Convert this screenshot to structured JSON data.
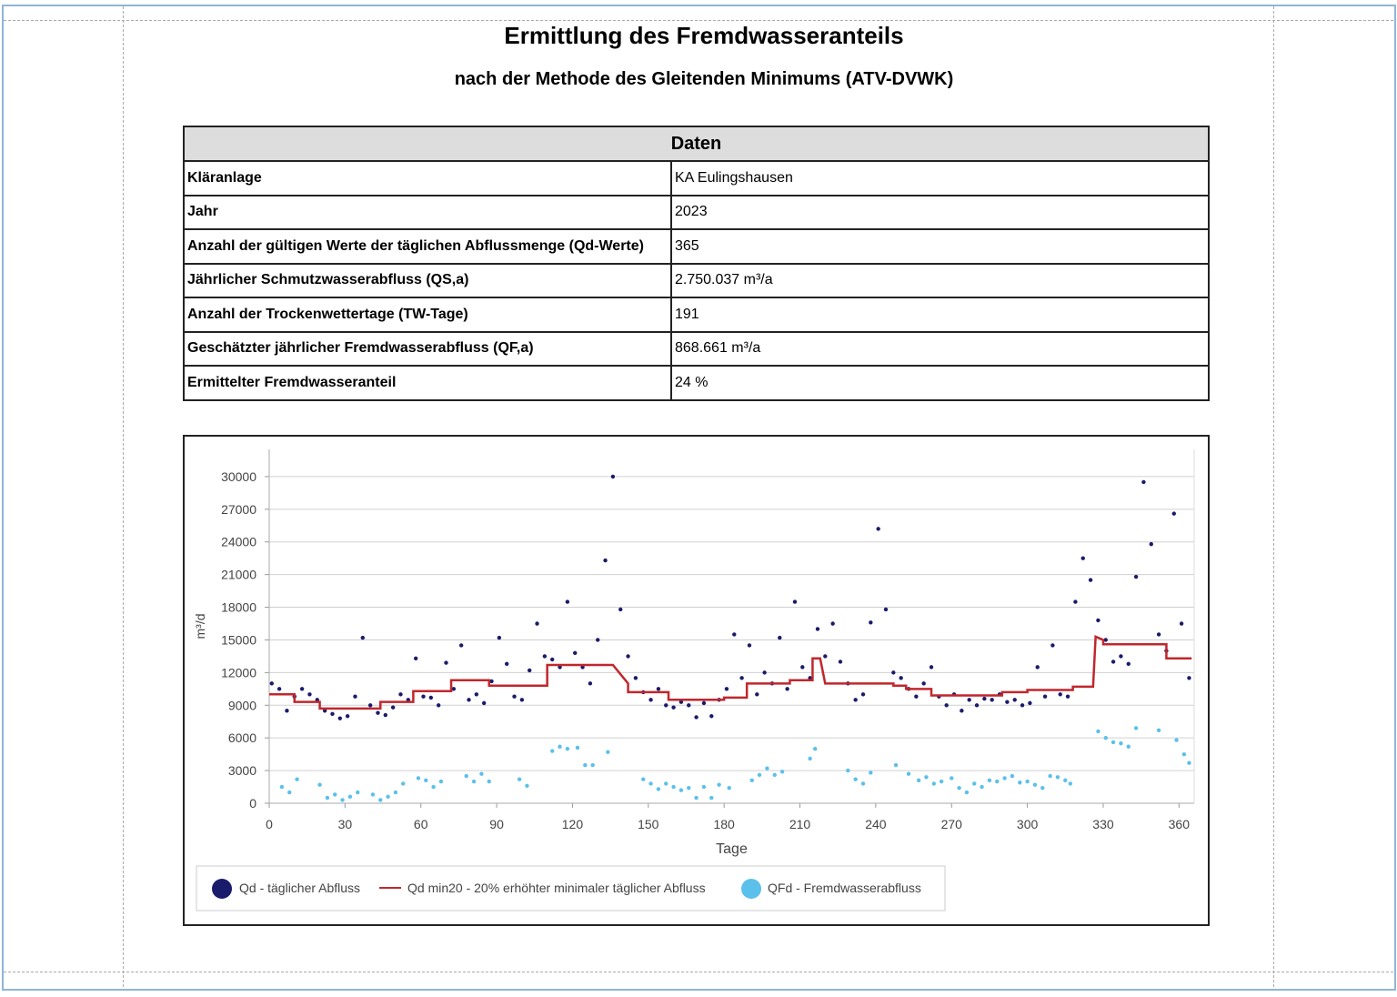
{
  "header": {
    "title": "Ermittlung des Fremdwasseranteils",
    "subtitle": "nach der Methode des Gleitenden Minimums (ATV-DVWK)"
  },
  "table": {
    "title": "Daten",
    "rows": [
      [
        "Kläranlage",
        "KA Eulingshausen"
      ],
      [
        "Jahr",
        "2023"
      ],
      [
        "Anzahl der gültigen Werte der täglichen Abflussmenge (Qd-Werte)",
        "365"
      ],
      [
        "Jährlicher Schmutzwasserabfluss (QS,a)",
        "2.750.037 m³/a"
      ],
      [
        "Anzahl der Trockenwettertage (TW-Tage)",
        "191"
      ],
      [
        "Geschätzter jährlicher Fremdwasserabfluss (QF,a)",
        "868.661 m³/a"
      ],
      [
        "Ermittelter Fremdwasseranteil",
        "24 %"
      ]
    ]
  },
  "chart_data": {
    "type": "scatter",
    "x_label": "Tage",
    "y_label": "m³/d",
    "xlim": [
      0,
      366
    ],
    "ylim": [
      0,
      32500
    ],
    "xticks": [
      0,
      30,
      60,
      90,
      120,
      150,
      180,
      210,
      240,
      270,
      300,
      330,
      360
    ],
    "yticks": [
      0,
      3000,
      6000,
      9000,
      12000,
      15000,
      18000,
      21000,
      24000,
      27000,
      30000
    ],
    "grid": true,
    "series": [
      {
        "name": "Qd - täglicher Abfluss",
        "type": "scatter",
        "color": "#1b1b6b",
        "x": [
          1,
          4,
          7,
          10,
          13,
          16,
          19,
          22,
          25,
          28,
          31,
          34,
          37,
          40,
          43,
          46,
          49,
          52,
          55,
          58,
          61,
          64,
          67,
          70,
          73,
          76,
          79,
          82,
          85,
          88,
          91,
          94,
          97,
          100,
          103,
          106,
          109,
          112,
          115,
          118,
          121,
          124,
          127,
          130,
          133,
          136,
          139,
          142,
          145,
          148,
          151,
          154,
          157,
          160,
          163,
          166,
          169,
          172,
          175,
          178,
          181,
          184,
          187,
          190,
          193,
          196,
          199,
          202,
          205,
          208,
          211,
          214,
          217,
          220,
          223,
          226,
          229,
          232,
          235,
          238,
          241,
          244,
          247,
          250,
          253,
          256,
          259,
          262,
          265,
          268,
          271,
          274,
          277,
          280,
          283,
          286,
          289,
          292,
          295,
          298,
          301,
          304,
          307,
          310,
          313,
          316,
          319,
          322,
          325,
          328,
          331,
          334,
          337,
          340,
          343,
          346,
          349,
          352,
          355,
          358,
          361,
          364
        ],
        "values": [
          11000,
          10500,
          8500,
          9800,
          10500,
          10000,
          9500,
          8500,
          8200,
          7800,
          8000,
          9800,
          15200,
          9000,
          8300,
          8100,
          8800,
          10000,
          9500,
          13300,
          9800,
          9700,
          9000,
          12900,
          10500,
          14500,
          9500,
          10000,
          9200,
          11200,
          15200,
          12800,
          9800,
          9500,
          12200,
          16500,
          13500,
          13200,
          12500,
          18500,
          13800,
          12500,
          11000,
          15000,
          22300,
          30000,
          17800,
          13500,
          11500,
          10200,
          9500,
          10500,
          9000,
          8800,
          9300,
          9000,
          7900,
          9200,
          8000,
          9500,
          10500,
          15500,
          11500,
          14500,
          10000,
          12000,
          11000,
          15200,
          10500,
          18500,
          12500,
          11500,
          16000,
          13500,
          16500,
          13000,
          11000,
          9500,
          10000,
          16600,
          25200,
          17800,
          12000,
          11500,
          10500,
          9800,
          11000,
          12500,
          9800,
          9000,
          10000,
          8500,
          9500,
          9000,
          9600,
          9500,
          10000,
          9300,
          9500,
          9000,
          9200,
          12500,
          9800,
          14500,
          10000,
          9800,
          18500,
          22500,
          20500,
          16800,
          15000,
          13000,
          13500,
          12800,
          20800,
          29500,
          23800,
          15500,
          14000,
          26600,
          16500,
          11500
        ]
      },
      {
        "name": "Qd min20 - 20% erhöhter minimaler täglicher Abfluss",
        "type": "line",
        "color": "#c0272d",
        "x": [
          0,
          10,
          10,
          15,
          15,
          20,
          20,
          44,
          44,
          57,
          57,
          72,
          72,
          87,
          87,
          110,
          110,
          136,
          142,
          142,
          158,
          158,
          180,
          180,
          189,
          189,
          206,
          206,
          215,
          215,
          218,
          220,
          247,
          247,
          252,
          252,
          262,
          262,
          290,
          290,
          300,
          300,
          318,
          318,
          326,
          327,
          330,
          330,
          355,
          355,
          365
        ],
        "values": [
          10000,
          10000,
          9300,
          9300,
          9300,
          9300,
          8700,
          8700,
          9300,
          9300,
          10300,
          10300,
          11300,
          11300,
          10800,
          10800,
          12700,
          12700,
          11000,
          10200,
          10200,
          9500,
          9500,
          9700,
          9700,
          11000,
          11000,
          11300,
          11300,
          13300,
          13300,
          11000,
          11000,
          10800,
          10800,
          10500,
          10500,
          9900,
          9900,
          10200,
          10200,
          10400,
          10400,
          10700,
          10700,
          15300,
          15000,
          14600,
          14600,
          13300,
          13300
        ]
      },
      {
        "name": "QFd - Fremdwasserabfluss",
        "type": "scatter",
        "color": "#5bc0eb",
        "x": [
          5,
          8,
          11,
          20,
          23,
          26,
          29,
          32,
          35,
          41,
          44,
          47,
          50,
          53,
          59,
          62,
          65,
          68,
          78,
          81,
          84,
          87,
          99,
          102,
          112,
          115,
          118,
          122,
          125,
          128,
          134,
          148,
          151,
          154,
          157,
          160,
          163,
          166,
          169,
          172,
          175,
          178,
          182,
          191,
          194,
          197,
          200,
          203,
          214,
          216,
          229,
          232,
          235,
          238,
          248,
          253,
          257,
          260,
          263,
          266,
          270,
          273,
          276,
          279,
          282,
          285,
          288,
          291,
          294,
          297,
          300,
          303,
          306,
          309,
          312,
          315,
          317,
          328,
          331,
          334,
          337,
          340,
          343,
          352,
          359,
          362,
          364
        ],
        "values": [
          1500,
          1000,
          2200,
          1700,
          500,
          800,
          300,
          600,
          1000,
          800,
          300,
          600,
          1000,
          1800,
          2300,
          2100,
          1500,
          2000,
          2500,
          2000,
          2700,
          2000,
          2200,
          1600,
          4800,
          5200,
          5000,
          5100,
          3500,
          3500,
          4700,
          2200,
          1800,
          1300,
          1800,
          1500,
          1200,
          1400,
          500,
          1500,
          500,
          1700,
          1400,
          2100,
          2600,
          3200,
          2600,
          2900,
          4100,
          5000,
          3000,
          2200,
          1800,
          2800,
          3500,
          2700,
          2100,
          2400,
          1800,
          2000,
          2300,
          1400,
          1000,
          1800,
          1500,
          2100,
          2000,
          2300,
          2500,
          1900,
          2000,
          1700,
          1400,
          2500,
          2400,
          2100,
          1800,
          6600,
          6000,
          5600,
          5500,
          5200,
          6900,
          6700,
          5800,
          4500,
          3700
        ]
      }
    ]
  }
}
